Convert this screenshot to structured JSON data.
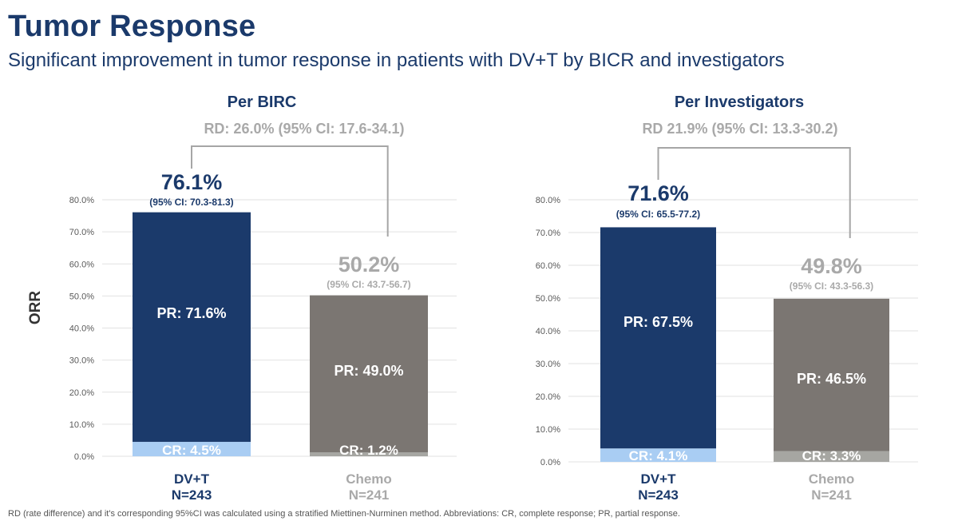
{
  "header": {
    "title": "Tumor Response",
    "subtitle": "Significant improvement in tumor response in patients with DV+T by BICR and investigators"
  },
  "footnote": "RD (rate difference) and it's corresponding 95%CI was calculated using a stratified Miettinen-Nurminen method. Abbreviations: CR, complete response; PR, partial response.",
  "colors": {
    "dvt_pr": "#1b3a6b",
    "dvt_cr": "#a9cdf3",
    "chemo_pr": "#7b7672",
    "chemo_cr": "#a6a6a2",
    "dvt_text": "#1b3a6b",
    "chemo_text": "#a9a9a9",
    "axis_text": "#595959",
    "grid": "#e2e2e2"
  },
  "chart_data": [
    {
      "type": "bar",
      "stacked": true,
      "title": "Per BIRC",
      "rd_label": "RD: 26.0% (95% CI: 17.6-34.1)",
      "ylabel": "ORR",
      "ylim": [
        0,
        80
      ],
      "yticks": [
        0,
        10,
        20,
        30,
        40,
        50,
        60,
        70,
        80
      ],
      "ytick_labels": [
        "0.0%",
        "10.0%",
        "20.0%",
        "30.0%",
        "40.0%",
        "50.0%",
        "60.0%",
        "70.0%",
        "80.0%"
      ],
      "bars": [
        {
          "group": "DV+T",
          "n_label": "N=243",
          "total": 76.1,
          "total_label": "76.1%",
          "ci_label": "(95% CI: 70.3-81.3)",
          "cr": 4.5,
          "cr_label": "CR: 4.5%",
          "pr": 71.6,
          "pr_label": "PR: 71.6%"
        },
        {
          "group": "Chemo",
          "n_label": "N=241",
          "total": 50.2,
          "total_label": "50.2%",
          "ci_label": "(95% CI: 43.7-56.7)",
          "cr": 1.2,
          "cr_label": "CR: 1.2%",
          "pr": 49.0,
          "pr_label": "PR: 49.0%"
        }
      ]
    },
    {
      "type": "bar",
      "stacked": true,
      "title": "Per Investigators",
      "rd_label": "RD 21.9% (95% CI: 13.3-30.2)",
      "ylabel": "",
      "ylim": [
        0,
        80
      ],
      "yticks": [
        0,
        10,
        20,
        30,
        40,
        50,
        60,
        70,
        80
      ],
      "ytick_labels": [
        "0.0%",
        "10.0%",
        "20.0%",
        "30.0%",
        "40.0%",
        "50.0%",
        "60.0%",
        "70.0%",
        "80.0%"
      ],
      "bars": [
        {
          "group": "DV+T",
          "n_label": "N=243",
          "total": 71.6,
          "total_label": "71.6%",
          "ci_label": "(95% CI: 65.5-77.2)",
          "cr": 4.1,
          "cr_label": "CR: 4.1%",
          "pr": 67.5,
          "pr_label": "PR: 67.5%"
        },
        {
          "group": "Chemo",
          "n_label": "N=241",
          "total": 49.8,
          "total_label": "49.8%",
          "ci_label": "(95% CI: 43.3-56.3)",
          "cr": 3.3,
          "cr_label": "CR: 3.3%",
          "pr": 46.5,
          "pr_label": "PR: 46.5%"
        }
      ]
    }
  ]
}
